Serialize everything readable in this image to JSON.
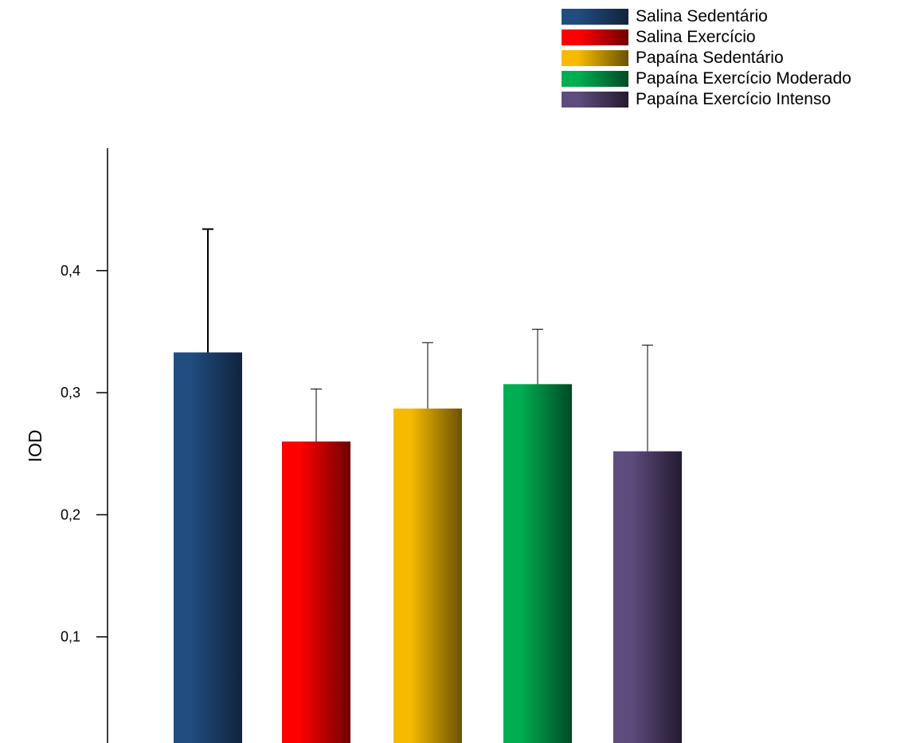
{
  "chart_data": {
    "type": "bar",
    "title": "",
    "xlabel": "",
    "ylabel": "IOD",
    "ylim": [
      0,
      0.5
    ],
    "yticks": [
      0.1,
      0.2,
      0.3,
      0.4
    ],
    "ytick_labels": [
      "0,1",
      "0,2",
      "0,3",
      "0,4"
    ],
    "legend_position": "top-right",
    "error_bars": "upper",
    "series": [
      {
        "name": "Salina Sedentário",
        "value": 0.333,
        "error": 0.101,
        "color_light": "#214C80",
        "color_dark": "#11233D"
      },
      {
        "name": "Salina Exercício",
        "value": 0.26,
        "error": 0.043,
        "color_light": "#FF0000",
        "color_dark": "#6F0000"
      },
      {
        "name": "Papaína Sedentário",
        "value": 0.287,
        "error": 0.054,
        "color_light": "#F7BA00",
        "color_dark": "#6A5200"
      },
      {
        "name": "Papaína Exercício Moderado",
        "value": 0.307,
        "error": 0.045,
        "color_light": "#00AE51",
        "color_dark": "#004A25"
      },
      {
        "name": "Papaína Exercício Intenso",
        "value": 0.252,
        "error": 0.087,
        "color_light": "#5E4C7E",
        "color_dark": "#241A30"
      }
    ]
  }
}
